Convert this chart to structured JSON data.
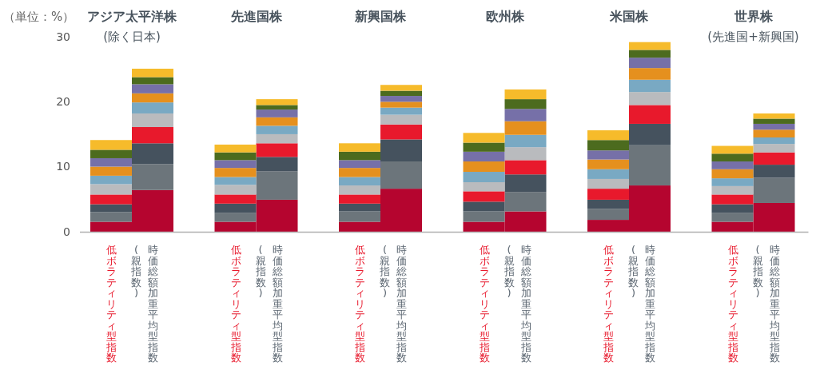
{
  "chart_data": {
    "type": "bar",
    "stacked": true,
    "ylabel": "（単位：%）",
    "annotations": [
      "**アジア太平洋株**\n(除く日本)",
      "**先進国株**",
      "**新興国株**",
      "**欧州株**",
      "**米国株**",
      "**世界株**\n(先進国+新興国)"
    ],
    "categories": [
      "低ボラティリティ型指数",
      "時価総額加重平均型指数(親指数)",
      "低ボラティリティ型指数",
      "時価総額加重平均型指数(親指数)",
      "低ボラティリティ型指数",
      "時価総額加重平均型指数(親指数)",
      "低ボラティリティ型指数",
      "時価総額加重平均型指数(親指数)",
      "低ボラティリティ型指数",
      "時価総額加重平均型指数(親指数)",
      "低ボラティリティ型指数",
      "時価総額加重平均型指数(親指数)"
    ],
    "ylim": [
      0,
      30
    ],
    "yticks": [
      0,
      10,
      20,
      30
    ],
    "series": [
      {
        "color": "#b5052f",
        "values": [
          1.6,
          6.5,
          1.6,
          5.0,
          1.6,
          6.7,
          1.6,
          3.2,
          1.9,
          7.2,
          1.6,
          4.5
        ]
      },
      {
        "color": "#6c757b",
        "values": [
          1.5,
          4.0,
          1.4,
          4.4,
          1.6,
          4.2,
          1.6,
          3.0,
          1.7,
          6.2,
          1.4,
          3.9
        ]
      },
      {
        "color": "#45525e",
        "values": [
          1.2,
          3.2,
          1.4,
          2.2,
          1.2,
          3.4,
          1.5,
          2.7,
          1.4,
          3.3,
          1.3,
          2.0
        ]
      },
      {
        "color": "#e8192c",
        "values": [
          1.5,
          2.5,
          1.4,
          2.1,
          1.4,
          2.3,
          1.6,
          2.2,
          1.7,
          2.9,
          1.5,
          1.9
        ]
      },
      {
        "color": "#b9bbbe",
        "values": [
          1.6,
          2.1,
          1.5,
          1.4,
          1.4,
          1.5,
          1.4,
          2.0,
          1.5,
          2.0,
          1.3,
          1.3
        ]
      },
      {
        "color": "#79a9c3",
        "values": [
          1.3,
          1.7,
          1.2,
          1.3,
          1.3,
          1.1,
          1.6,
          1.9,
          1.5,
          1.9,
          1.2,
          1.0
        ]
      },
      {
        "color": "#e5901e",
        "values": [
          1.4,
          1.4,
          1.4,
          1.3,
          1.4,
          0.9,
          1.6,
          2.1,
          1.5,
          1.8,
          1.4,
          1.2
        ]
      },
      {
        "color": "#7670a8",
        "values": [
          1.3,
          1.4,
          1.2,
          1.2,
          1.2,
          0.9,
          1.5,
          1.9,
          1.4,
          1.6,
          1.2,
          0.9
        ]
      },
      {
        "color": "#4c6b1e",
        "values": [
          1.3,
          1.1,
          1.2,
          0.7,
          1.3,
          0.8,
          1.4,
          1.5,
          1.6,
          1.2,
          1.2,
          0.8
        ]
      },
      {
        "color": "#f6bb2b",
        "values": [
          1.5,
          1.3,
          1.2,
          0.9,
          1.3,
          0.9,
          1.5,
          1.5,
          1.5,
          1.2,
          1.2,
          0.8
        ]
      }
    ]
  }
}
